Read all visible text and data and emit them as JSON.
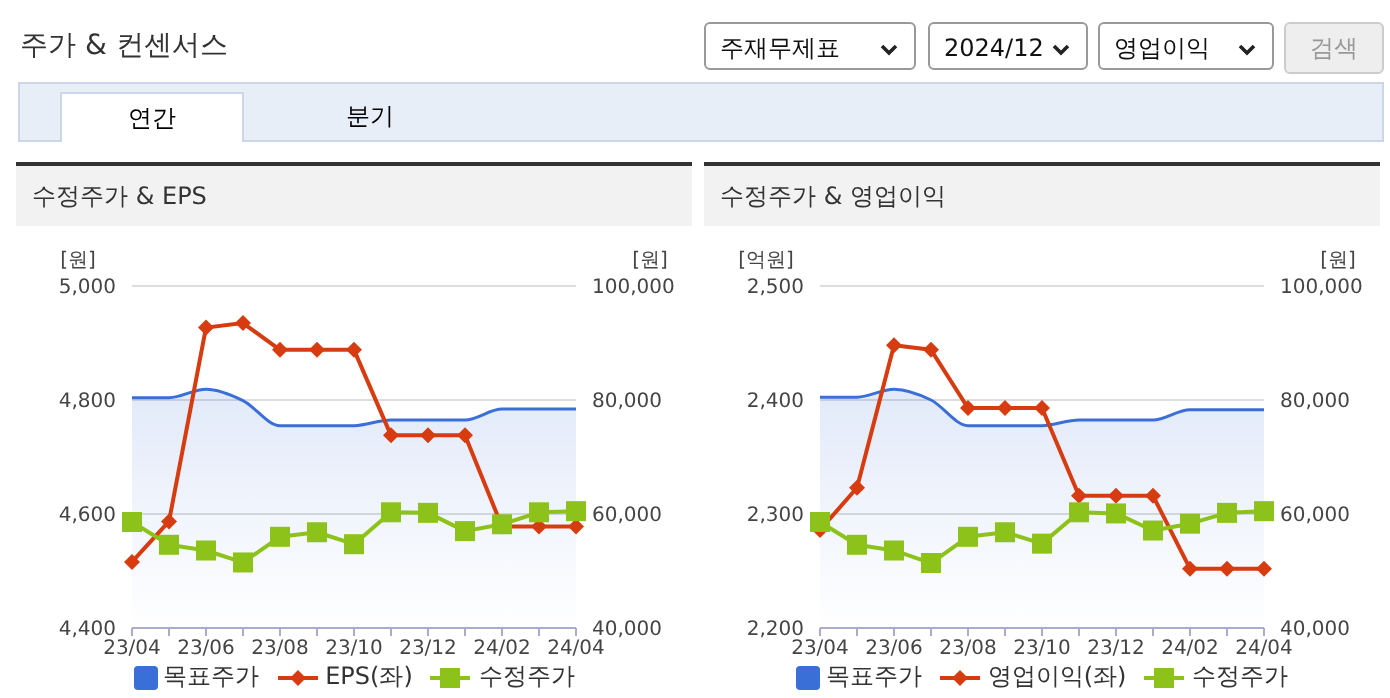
{
  "chart_data": [
    {
      "type": "line",
      "title": "수정주가 & EPS",
      "annotations": [
        "주가 & 컨센서스",
        "주재무제표",
        "2024/12",
        "영업이익",
        "검색",
        "연간",
        "분기"
      ],
      "ylabel": "[원]",
      "y2label": "[원]",
      "categories": [
        "23/04",
        null,
        "23/06",
        null,
        "23/08",
        null,
        "23/10",
        null,
        "23/12",
        null,
        "24/02",
        null,
        "24/04"
      ],
      "ylim": [
        4400,
        5000
      ],
      "yticks": [
        {
          "value": 4400,
          "label": "4,400"
        },
        {
          "value": 4600,
          "label": "4,600"
        },
        {
          "value": 4800,
          "label": "4,800"
        },
        {
          "value": 5000,
          "label": "5,000"
        }
      ],
      "y2lim": [
        40000,
        100000
      ],
      "y2ticks": [
        {
          "value": 40000,
          "label": "40,000"
        },
        {
          "value": 60000,
          "label": "60,000"
        },
        {
          "value": 80000,
          "label": "80,000"
        },
        {
          "value": 100000,
          "label": "100,000"
        }
      ],
      "grid": "y",
      "legend": "bottom",
      "series": [
        {
          "name": "목표주가",
          "type": "area",
          "axis": "y2",
          "color": "#3a6fd8",
          "values": [
            80400,
            80400,
            81900,
            79900,
            75500,
            75500,
            75500,
            76500,
            76500,
            76500,
            78400,
            78400,
            78400
          ]
        },
        {
          "name": "EPS(좌)",
          "type": "line",
          "marker": "diamond",
          "color": "#d63c10",
          "values": [
            4516,
            4587,
            4927,
            4935,
            4888,
            4888,
            4888,
            4738,
            4738,
            4738,
            4578,
            4578,
            4578
          ]
        },
        {
          "name": "수정주가",
          "type": "line",
          "marker": "square",
          "axis": "y2",
          "color": "#8cc21a",
          "values": [
            58600,
            54600,
            53600,
            51500,
            56000,
            56800,
            54700,
            60300,
            60200,
            57000,
            58200,
            60300,
            60500
          ]
        }
      ]
    },
    {
      "type": "line",
      "title": "수정주가 & 영업이익",
      "ylabel": "[억원]",
      "y2label": "[원]",
      "categories": [
        "23/04",
        null,
        "23/06",
        null,
        "23/08",
        null,
        "23/10",
        null,
        "23/12",
        null,
        "24/02",
        null,
        "24/04"
      ],
      "ylim": [
        2200,
        2500
      ],
      "yticks": [
        {
          "value": 2200,
          "label": "2,200"
        },
        {
          "value": 2300,
          "label": "2,300"
        },
        {
          "value": 2400,
          "label": "2,400"
        },
        {
          "value": 2500,
          "label": "2,500"
        }
      ],
      "y2lim": [
        40000,
        100000
      ],
      "y2ticks": [
        {
          "value": 40000,
          "label": "40,000"
        },
        {
          "value": 60000,
          "label": "60,000"
        },
        {
          "value": 80000,
          "label": "80,000"
        },
        {
          "value": 100000,
          "label": "100,000"
        }
      ],
      "grid": "y",
      "legend": "bottom",
      "series": [
        {
          "name": "목표주가",
          "type": "area",
          "axis": "y2",
          "color": "#3a6fd8",
          "values": [
            80500,
            80500,
            81900,
            80000,
            75500,
            75500,
            75500,
            76500,
            76500,
            76500,
            78300,
            78300,
            78300
          ]
        },
        {
          "name": "영업이익(좌)",
          "type": "line",
          "marker": "diamond",
          "color": "#d63c10",
          "values": [
            2286,
            2323,
            2448,
            2444,
            2393,
            2393,
            2393,
            2316,
            2316,
            2316,
            2252,
            2252,
            2252
          ]
        },
        {
          "name": "수정주가",
          "type": "line",
          "marker": "square",
          "axis": "y2",
          "color": "#8cc21a",
          "values": [
            58600,
            54600,
            53600,
            51400,
            56000,
            56800,
            54800,
            60300,
            60100,
            57100,
            58300,
            60200,
            60500
          ]
        }
      ]
    }
  ]
}
